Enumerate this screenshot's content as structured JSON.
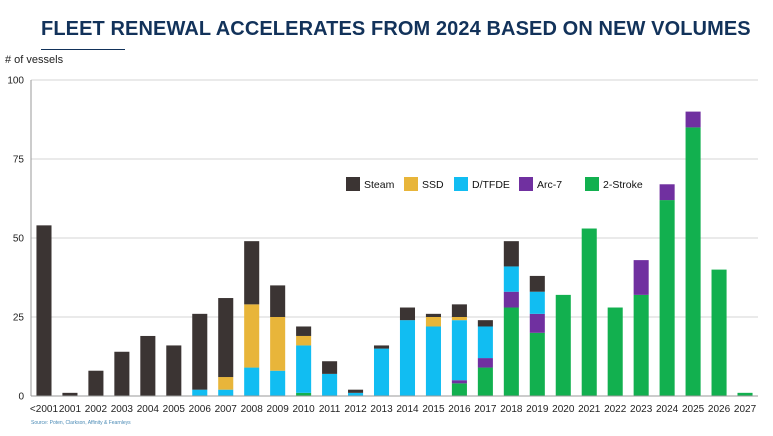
{
  "title": "FLEET RENEWAL ACCELERATES FROM 2024 BASED ON NEW VOLUMES",
  "source": "Source: Poten, Clarkson, Affinity & Fearnleys",
  "colors": {
    "Steam": "#3b3433",
    "SSD": "#e8b53a",
    "D/TFDE": "#11bdf2",
    "Arc-7": "#7030a0",
    "2-Stroke": "#12b04f",
    "grid": "#d4d4d4",
    "axis": "#9a9a9a"
  },
  "chart_data": {
    "type": "bar",
    "stacked": true,
    "title": "FLEET RENEWAL ACCELERATES FROM 2024 BASED ON NEW VOLUMES",
    "ylabel": "# of vessels",
    "xlabel": "",
    "ylim": [
      0,
      100
    ],
    "yticks": [
      0,
      25,
      50,
      75,
      100
    ],
    "grid": true,
    "legend_position": "top-center",
    "categories": [
      "<2001",
      "2001",
      "2002",
      "2003",
      "2004",
      "2005",
      "2006",
      "2007",
      "2008",
      "2009",
      "2010",
      "2011",
      "2012",
      "2013",
      "2014",
      "2015",
      "2016",
      "2017",
      "2018",
      "2019",
      "2020",
      "2021",
      "2022",
      "2023",
      "2024",
      "2025",
      "2026",
      "2027"
    ],
    "series": [
      {
        "name": "2-Stroke",
        "values": [
          0,
          0,
          0,
          0,
          0,
          0,
          0,
          0,
          0,
          0,
          1,
          0,
          0,
          0,
          0,
          0,
          4,
          9,
          28,
          20,
          32,
          53,
          28,
          32,
          62,
          85,
          40,
          1
        ]
      },
      {
        "name": "Arc-7",
        "values": [
          0,
          0,
          0,
          0,
          0,
          0,
          0,
          0,
          0,
          0,
          0,
          0,
          0,
          0,
          0,
          0,
          1,
          3,
          5,
          6,
          0,
          0,
          0,
          11,
          5,
          5,
          0,
          0
        ]
      },
      {
        "name": "D/TFDE",
        "values": [
          0,
          0,
          0,
          0,
          0,
          0,
          2,
          2,
          9,
          8,
          15,
          7,
          1,
          15,
          24,
          22,
          19,
          10,
          8,
          7,
          0,
          0,
          0,
          0,
          0,
          0,
          0,
          0
        ]
      },
      {
        "name": "SSD",
        "values": [
          0,
          0,
          0,
          0,
          0,
          0,
          0,
          4,
          20,
          17,
          3,
          0,
          0,
          0,
          0,
          3,
          1,
          0,
          0,
          0,
          0,
          0,
          0,
          0,
          0,
          0,
          0,
          0
        ]
      },
      {
        "name": "Steam",
        "values": [
          54,
          1,
          8,
          14,
          19,
          16,
          24,
          25,
          20,
          10,
          3,
          4,
          1,
          1,
          4,
          1,
          4,
          2,
          8,
          5,
          0,
          0,
          0,
          0,
          0,
          0,
          0,
          0
        ]
      }
    ],
    "legend": [
      "Steam",
      "SSD",
      "D/TFDE",
      "Arc-7",
      "2-Stroke"
    ]
  }
}
